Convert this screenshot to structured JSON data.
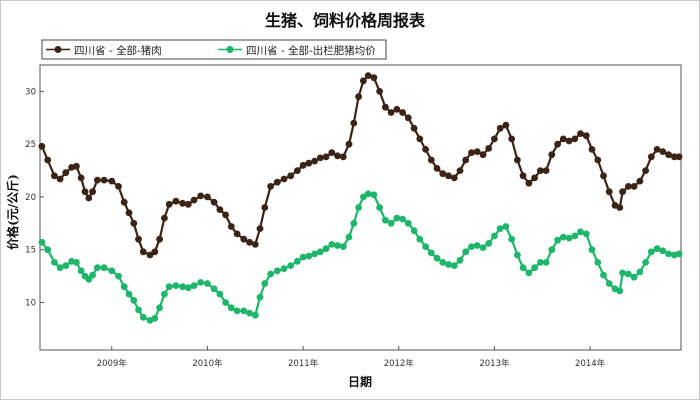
{
  "chart_data": {
    "type": "line",
    "title": "生猪、饲料价格周报表",
    "xlabel": "日期",
    "ylabel": "价格(元/公斤)",
    "xlim": [
      2008.25,
      2014.95
    ],
    "ylim": [
      5.5,
      32.5
    ],
    "yticks": [
      10,
      15,
      20,
      25,
      30
    ],
    "xticks": [
      {
        "value": 2009.0,
        "label": "2009年"
      },
      {
        "value": 2010.0,
        "label": "2010年"
      },
      {
        "value": 2011.0,
        "label": "2011年"
      },
      {
        "value": 2012.0,
        "label": "2012年"
      },
      {
        "value": 2013.0,
        "label": "2013年"
      },
      {
        "value": 2014.0,
        "label": "2014年"
      }
    ],
    "legend_position": "top-left",
    "series": [
      {
        "name": "四川省 - 全部-猪肉",
        "color": "#3b2316",
        "points": [
          [
            2008.27,
            24.8
          ],
          [
            2008.33,
            23.5
          ],
          [
            2008.4,
            22.0
          ],
          [
            2008.46,
            21.7
          ],
          [
            2008.52,
            22.3
          ],
          [
            2008.58,
            22.8
          ],
          [
            2008.63,
            22.9
          ],
          [
            2008.68,
            21.8
          ],
          [
            2008.72,
            20.5
          ],
          [
            2008.76,
            19.9
          ],
          [
            2008.8,
            20.5
          ],
          [
            2008.85,
            21.6
          ],
          [
            2008.92,
            21.6
          ],
          [
            2009.0,
            21.5
          ],
          [
            2009.07,
            21.0
          ],
          [
            2009.13,
            19.5
          ],
          [
            2009.18,
            18.5
          ],
          [
            2009.23,
            17.5
          ],
          [
            2009.28,
            16.0
          ],
          [
            2009.33,
            14.8
          ],
          [
            2009.4,
            14.5
          ],
          [
            2009.45,
            14.8
          ],
          [
            2009.5,
            16.0
          ],
          [
            2009.55,
            18.0
          ],
          [
            2009.6,
            19.3
          ],
          [
            2009.67,
            19.6
          ],
          [
            2009.74,
            19.4
          ],
          [
            2009.8,
            19.3
          ],
          [
            2009.86,
            19.7
          ],
          [
            2009.93,
            20.1
          ],
          [
            2010.0,
            20.0
          ],
          [
            2010.07,
            19.5
          ],
          [
            2010.13,
            18.8
          ],
          [
            2010.19,
            18.3
          ],
          [
            2010.25,
            17.2
          ],
          [
            2010.31,
            16.5
          ],
          [
            2010.38,
            16.0
          ],
          [
            2010.44,
            15.7
          ],
          [
            2010.5,
            15.5
          ],
          [
            2010.55,
            17.0
          ],
          [
            2010.6,
            19.0
          ],
          [
            2010.66,
            21.0
          ],
          [
            2010.73,
            21.4
          ],
          [
            2010.8,
            21.7
          ],
          [
            2010.87,
            22.0
          ],
          [
            2010.94,
            22.5
          ],
          [
            2011.0,
            23.0
          ],
          [
            2011.06,
            23.2
          ],
          [
            2011.12,
            23.4
          ],
          [
            2011.18,
            23.7
          ],
          [
            2011.24,
            23.8
          ],
          [
            2011.3,
            24.2
          ],
          [
            2011.36,
            23.9
          ],
          [
            2011.42,
            23.8
          ],
          [
            2011.48,
            25.0
          ],
          [
            2011.53,
            27.0
          ],
          [
            2011.58,
            29.5
          ],
          [
            2011.63,
            31.0
          ],
          [
            2011.68,
            31.5
          ],
          [
            2011.74,
            31.3
          ],
          [
            2011.8,
            30.0
          ],
          [
            2011.86,
            28.5
          ],
          [
            2011.92,
            28.0
          ],
          [
            2011.98,
            28.3
          ],
          [
            2012.04,
            28.0
          ],
          [
            2012.1,
            27.5
          ],
          [
            2012.16,
            26.5
          ],
          [
            2012.22,
            25.5
          ],
          [
            2012.28,
            24.5
          ],
          [
            2012.34,
            23.5
          ],
          [
            2012.4,
            22.7
          ],
          [
            2012.46,
            22.2
          ],
          [
            2012.52,
            22.0
          ],
          [
            2012.58,
            21.8
          ],
          [
            2012.64,
            22.5
          ],
          [
            2012.7,
            23.5
          ],
          [
            2012.76,
            24.2
          ],
          [
            2012.82,
            24.3
          ],
          [
            2012.88,
            24.0
          ],
          [
            2012.94,
            24.6
          ],
          [
            2013.0,
            25.5
          ],
          [
            2013.06,
            26.5
          ],
          [
            2013.12,
            26.8
          ],
          [
            2013.18,
            25.5
          ],
          [
            2013.24,
            23.5
          ],
          [
            2013.3,
            22.0
          ],
          [
            2013.36,
            21.3
          ],
          [
            2013.42,
            21.8
          ],
          [
            2013.48,
            22.5
          ],
          [
            2013.54,
            22.5
          ],
          [
            2013.6,
            24.0
          ],
          [
            2013.66,
            25.0
          ],
          [
            2013.72,
            25.5
          ],
          [
            2013.78,
            25.3
          ],
          [
            2013.84,
            25.5
          ],
          [
            2013.9,
            26.0
          ],
          [
            2013.96,
            25.8
          ],
          [
            2014.02,
            24.5
          ],
          [
            2014.08,
            23.5
          ],
          [
            2014.14,
            22.0
          ],
          [
            2014.2,
            20.5
          ],
          [
            2014.26,
            19.2
          ],
          [
            2014.31,
            19.0
          ],
          [
            2014.34,
            20.5
          ],
          [
            2014.4,
            21.0
          ],
          [
            2014.46,
            21.0
          ],
          [
            2014.52,
            21.5
          ],
          [
            2014.58,
            22.5
          ],
          [
            2014.64,
            23.8
          ],
          [
            2014.7,
            24.5
          ],
          [
            2014.76,
            24.3
          ],
          [
            2014.82,
            24.0
          ],
          [
            2014.88,
            23.8
          ],
          [
            2014.93,
            23.8
          ]
        ]
      },
      {
        "name": "四川省 - 全部-出栏肥猪均价",
        "color": "#1fb56b",
        "points": [
          [
            2008.27,
            15.7
          ],
          [
            2008.33,
            15.0
          ],
          [
            2008.4,
            13.8
          ],
          [
            2008.46,
            13.3
          ],
          [
            2008.52,
            13.5
          ],
          [
            2008.58,
            13.9
          ],
          [
            2008.63,
            13.8
          ],
          [
            2008.68,
            13.0
          ],
          [
            2008.72,
            12.5
          ],
          [
            2008.76,
            12.2
          ],
          [
            2008.8,
            12.6
          ],
          [
            2008.85,
            13.3
          ],
          [
            2008.92,
            13.3
          ],
          [
            2009.0,
            13.0
          ],
          [
            2009.07,
            12.5
          ],
          [
            2009.13,
            11.5
          ],
          [
            2009.18,
            10.8
          ],
          [
            2009.23,
            10.2
          ],
          [
            2009.28,
            9.3
          ],
          [
            2009.33,
            8.6
          ],
          [
            2009.4,
            8.3
          ],
          [
            2009.45,
            8.5
          ],
          [
            2009.5,
            9.5
          ],
          [
            2009.55,
            10.8
          ],
          [
            2009.6,
            11.5
          ],
          [
            2009.67,
            11.6
          ],
          [
            2009.74,
            11.5
          ],
          [
            2009.8,
            11.4
          ],
          [
            2009.86,
            11.6
          ],
          [
            2009.93,
            11.9
          ],
          [
            2010.0,
            11.8
          ],
          [
            2010.07,
            11.3
          ],
          [
            2010.13,
            10.8
          ],
          [
            2010.19,
            10.0
          ],
          [
            2010.25,
            9.5
          ],
          [
            2010.31,
            9.2
          ],
          [
            2010.38,
            9.2
          ],
          [
            2010.44,
            9.0
          ],
          [
            2010.5,
            8.8
          ],
          [
            2010.55,
            10.5
          ],
          [
            2010.6,
            11.8
          ],
          [
            2010.66,
            12.7
          ],
          [
            2010.73,
            13.0
          ],
          [
            2010.8,
            13.2
          ],
          [
            2010.87,
            13.5
          ],
          [
            2010.94,
            13.9
          ],
          [
            2011.0,
            14.3
          ],
          [
            2011.06,
            14.4
          ],
          [
            2011.12,
            14.6
          ],
          [
            2011.18,
            14.8
          ],
          [
            2011.24,
            15.1
          ],
          [
            2011.3,
            15.5
          ],
          [
            2011.36,
            15.4
          ],
          [
            2011.42,
            15.3
          ],
          [
            2011.48,
            16.2
          ],
          [
            2011.53,
            17.5
          ],
          [
            2011.58,
            19.0
          ],
          [
            2011.63,
            20.0
          ],
          [
            2011.68,
            20.3
          ],
          [
            2011.74,
            20.2
          ],
          [
            2011.8,
            19.0
          ],
          [
            2011.86,
            17.8
          ],
          [
            2011.92,
            17.5
          ],
          [
            2011.98,
            18.0
          ],
          [
            2012.04,
            17.9
          ],
          [
            2012.1,
            17.5
          ],
          [
            2012.16,
            16.8
          ],
          [
            2012.22,
            16.0
          ],
          [
            2012.28,
            15.3
          ],
          [
            2012.34,
            14.7
          ],
          [
            2012.4,
            14.2
          ],
          [
            2012.46,
            13.8
          ],
          [
            2012.52,
            13.6
          ],
          [
            2012.58,
            13.5
          ],
          [
            2012.64,
            14.0
          ],
          [
            2012.7,
            14.8
          ],
          [
            2012.76,
            15.3
          ],
          [
            2012.82,
            15.4
          ],
          [
            2012.88,
            15.2
          ],
          [
            2012.94,
            15.6
          ],
          [
            2013.0,
            16.3
          ],
          [
            2013.06,
            17.0
          ],
          [
            2013.12,
            17.2
          ],
          [
            2013.18,
            16.0
          ],
          [
            2013.24,
            14.5
          ],
          [
            2013.3,
            13.3
          ],
          [
            2013.36,
            12.8
          ],
          [
            2013.42,
            13.3
          ],
          [
            2013.48,
            13.8
          ],
          [
            2013.54,
            13.8
          ],
          [
            2013.6,
            15.0
          ],
          [
            2013.66,
            15.9
          ],
          [
            2013.72,
            16.2
          ],
          [
            2013.78,
            16.1
          ],
          [
            2013.84,
            16.3
          ],
          [
            2013.9,
            16.7
          ],
          [
            2013.96,
            16.5
          ],
          [
            2014.02,
            15.0
          ],
          [
            2014.08,
            13.8
          ],
          [
            2014.14,
            12.6
          ],
          [
            2014.2,
            11.8
          ],
          [
            2014.26,
            11.3
          ],
          [
            2014.31,
            11.1
          ],
          [
            2014.34,
            12.8
          ],
          [
            2014.4,
            12.7
          ],
          [
            2014.46,
            12.4
          ],
          [
            2014.52,
            12.9
          ],
          [
            2014.58,
            13.8
          ],
          [
            2014.64,
            14.8
          ],
          [
            2014.7,
            15.1
          ],
          [
            2014.76,
            14.9
          ],
          [
            2014.82,
            14.6
          ],
          [
            2014.88,
            14.5
          ],
          [
            2014.93,
            14.6
          ]
        ]
      }
    ]
  }
}
